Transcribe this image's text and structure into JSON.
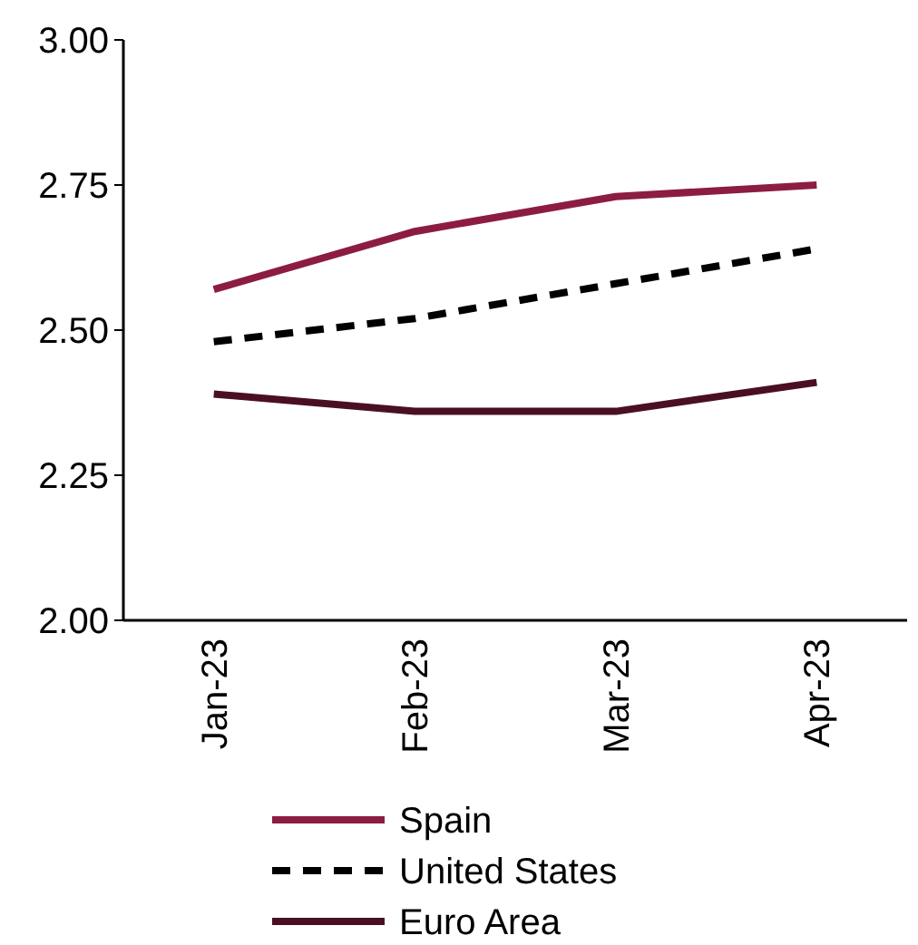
{
  "chart_data": {
    "type": "line",
    "categories": [
      "Jan-23",
      "Feb-23",
      "Mar-23",
      "Apr-23"
    ],
    "series": [
      {
        "name": "Spain",
        "color": "#8c1d40",
        "values": [
          2.57,
          2.67,
          2.73,
          2.75
        ],
        "line_style": "solid"
      },
      {
        "name": "United States",
        "color": "#000000",
        "values": [
          2.48,
          2.52,
          2.58,
          2.64
        ],
        "line_style": "dashed"
      },
      {
        "name": "Euro Area",
        "color": "#4a1022",
        "values": [
          2.39,
          2.36,
          2.36,
          2.41
        ],
        "line_style": "solid"
      }
    ],
    "ylim": [
      2,
      3
    ],
    "yticks": [
      {
        "value": 2,
        "label": "2.00"
      },
      {
        "value": 2.25,
        "label": "2.25"
      },
      {
        "value": 2.5,
        "label": "2.50"
      },
      {
        "value": 2.75,
        "label": "2.75"
      },
      {
        "value": 3,
        "label": "3.00"
      }
    ],
    "grid": false,
    "legend": "bottom"
  }
}
